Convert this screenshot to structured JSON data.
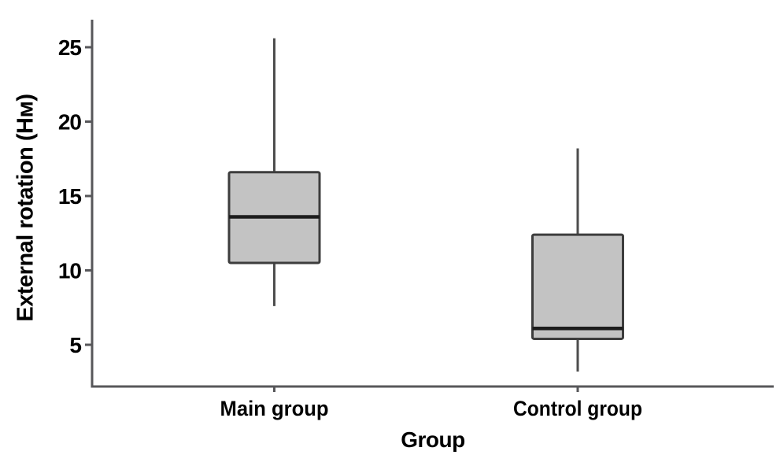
{
  "chart_data": {
    "type": "box",
    "title": "",
    "xlabel": "Group",
    "ylabel": "External rotation (Нм)",
    "categories": [
      "Main group",
      "Control group"
    ],
    "series": [
      {
        "name": "Main group",
        "whisker_low": 7.6,
        "q1": 10.5,
        "median": 13.6,
        "q3": 16.6,
        "whisker_high": 25.6
      },
      {
        "name": "Control group",
        "whisker_low": 3.2,
        "q1": 5.4,
        "median": 6.1,
        "q3": 12.4,
        "whisker_high": 18.2
      }
    ],
    "yticks": [
      5,
      10,
      15,
      20,
      25
    ],
    "ylim": [
      2.1,
      26.9
    ],
    "grid": false,
    "legend": "none",
    "orientation": "vertical",
    "colors": {
      "background": "#ffffff",
      "box_fill": "#c3c3c3",
      "box_border": "#3d3d3d",
      "median": "#1c1c1c",
      "whisker": "#4d4d4d",
      "axis": "#57575a",
      "text": "#000000"
    }
  }
}
